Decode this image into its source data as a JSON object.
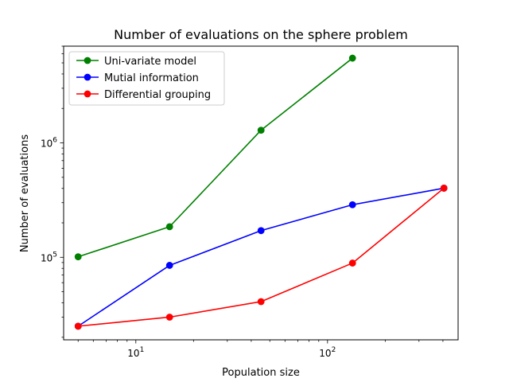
{
  "chart_data": {
    "type": "line",
    "title": "Number of evaluations on the sphere problem",
    "xlabel": "Population size",
    "ylabel": "Number of evaluations",
    "xscale": "log",
    "yscale": "log",
    "xlim": [
      4.2,
      480
    ],
    "ylim": [
      19000,
      7000000
    ],
    "grid": false,
    "legend_position": "top-left",
    "x_ticks": [
      {
        "value": 10,
        "base": "10",
        "exp": "1"
      },
      {
        "value": 100,
        "base": "10",
        "exp": "2"
      }
    ],
    "y_ticks": [
      {
        "value": 100000,
        "base": "10",
        "exp": "5"
      },
      {
        "value": 1000000,
        "base": "10",
        "exp": "6"
      }
    ],
    "series": [
      {
        "name": "Uni-variate model",
        "color": "#008000",
        "x": [
          5,
          15,
          45,
          135
        ],
        "y": [
          101000,
          185000,
          1290000,
          5500000
        ]
      },
      {
        "name": "Mutial information",
        "color": "#0000ff",
        "x": [
          5,
          15,
          45,
          135,
          405
        ],
        "y": [
          25000,
          85000,
          171000,
          288000,
          402000
        ]
      },
      {
        "name": "Differential grouping",
        "color": "#ff0000",
        "x": [
          5,
          15,
          45,
          135,
          405
        ],
        "y": [
          25000,
          30000,
          41000,
          89000,
          402000
        ]
      }
    ]
  }
}
